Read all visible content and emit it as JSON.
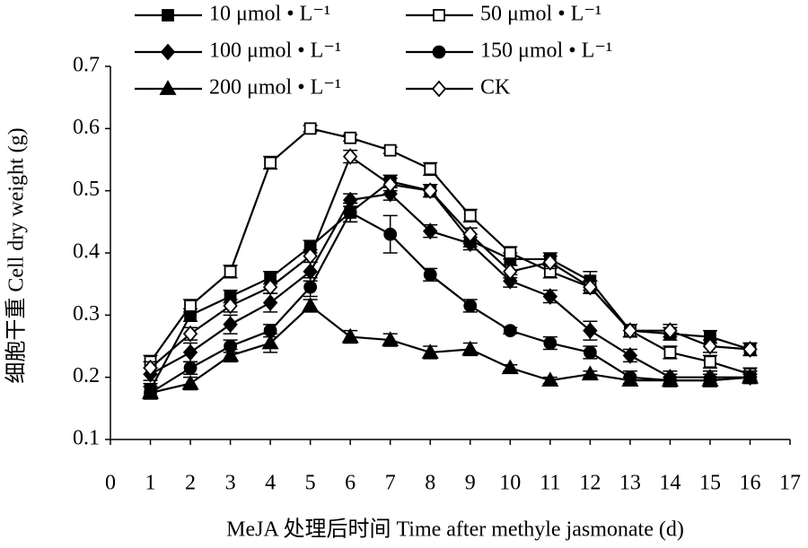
{
  "chart_data": {
    "type": "line",
    "y_label": "细胞干重 Cell dry weight (g)",
    "x_label": "MeJA 处理后时间 Time after methyle jasmonate (d)",
    "x": [
      1,
      2,
      3,
      4,
      5,
      6,
      7,
      8,
      9,
      10,
      11,
      12,
      13,
      14,
      15,
      16
    ],
    "xlim": [
      0,
      17
    ],
    "xticks": [
      0,
      1,
      2,
      3,
      4,
      5,
      6,
      7,
      8,
      9,
      10,
      11,
      12,
      13,
      14,
      15,
      16,
      17
    ],
    "ylim": [
      0.1,
      0.7
    ],
    "yticks": [
      0.1,
      0.2,
      0.3,
      0.4,
      0.5,
      0.6,
      0.7
    ],
    "series": [
      {
        "name": "10 μmol • L⁻¹",
        "color": "#000000",
        "marker": "square",
        "filled": true,
        "values": [
          0.18,
          0.3,
          0.33,
          0.36,
          0.41,
          0.465,
          0.515,
          0.5,
          0.42,
          0.39,
          0.39,
          0.355,
          0.275,
          0.27,
          0.265,
          0.245
        ],
        "errors": [
          0.01,
          0.01,
          0.01,
          0.01,
          0.01,
          0.015,
          0.01,
          0.01,
          0.01,
          0.01,
          0.01,
          0.015,
          0.01,
          0.01,
          0.01,
          0.01
        ]
      },
      {
        "name": "50 μmol • L⁻¹",
        "color": "#000000",
        "marker": "square",
        "filled": false,
        "values": [
          0.225,
          0.315,
          0.37,
          0.545,
          0.6,
          0.585,
          0.565,
          0.535,
          0.46,
          0.4,
          0.37,
          0.345,
          0.275,
          0.24,
          0.225,
          0.205
        ],
        "errors": [
          0.01,
          0.01,
          0.01,
          0.01,
          0.005,
          0.005,
          0.005,
          0.01,
          0.01,
          0.01,
          0.01,
          0.01,
          0.01,
          0.01,
          0.01,
          0.01
        ]
      },
      {
        "name": "100 μmol • L⁻¹",
        "color": "#000000",
        "marker": "diamond",
        "filled": true,
        "values": [
          0.205,
          0.24,
          0.285,
          0.32,
          0.37,
          0.485,
          0.495,
          0.435,
          0.415,
          0.355,
          0.33,
          0.275,
          0.235,
          0.2,
          0.2,
          0.2
        ],
        "errors": [
          0.01,
          0.015,
          0.015,
          0.015,
          0.015,
          0.01,
          0.01,
          0.01,
          0.01,
          0.01,
          0.01,
          0.015,
          0.01,
          0.01,
          0.01,
          0.01
        ]
      },
      {
        "name": "150 μmol • L⁻¹",
        "color": "#000000",
        "marker": "circle",
        "filled": true,
        "values": [
          0.175,
          0.215,
          0.25,
          0.275,
          0.345,
          0.465,
          0.43,
          0.365,
          0.315,
          0.275,
          0.255,
          0.24,
          0.2,
          0.195,
          0.195,
          0.2
        ],
        "errors": [
          0.01,
          0.01,
          0.01,
          0.01,
          0.015,
          0.015,
          0.03,
          0.01,
          0.01,
          0.005,
          0.01,
          0.01,
          0.01,
          0.01,
          0.01,
          0.005
        ]
      },
      {
        "name": "200 μmol • L⁻¹",
        "color": "#000000",
        "marker": "triangle",
        "filled": true,
        "values": [
          0.175,
          0.19,
          0.235,
          0.255,
          0.315,
          0.265,
          0.26,
          0.24,
          0.245,
          0.215,
          0.195,
          0.205,
          0.195,
          0.195,
          0.195,
          0.2
        ],
        "errors": [
          0.01,
          0.01,
          0.01,
          0.015,
          0.01,
          0.01,
          0.01,
          0.01,
          0.01,
          0.005,
          0.005,
          0.005,
          0.005,
          0.005,
          0.005,
          0.005
        ]
      },
      {
        "name": "CK",
        "color": "#000000",
        "marker": "diamond",
        "filled": false,
        "values": [
          0.215,
          0.27,
          0.315,
          0.345,
          0.395,
          0.555,
          0.51,
          0.5,
          0.43,
          0.37,
          0.385,
          0.345,
          0.275,
          0.275,
          0.25,
          0.245
        ],
        "errors": [
          0.01,
          0.01,
          0.01,
          0.01,
          0.01,
          0.01,
          0.01,
          0.01,
          0.01,
          0.01,
          0.01,
          0.01,
          0.01,
          0.01,
          0.01,
          0.01
        ]
      }
    ]
  }
}
